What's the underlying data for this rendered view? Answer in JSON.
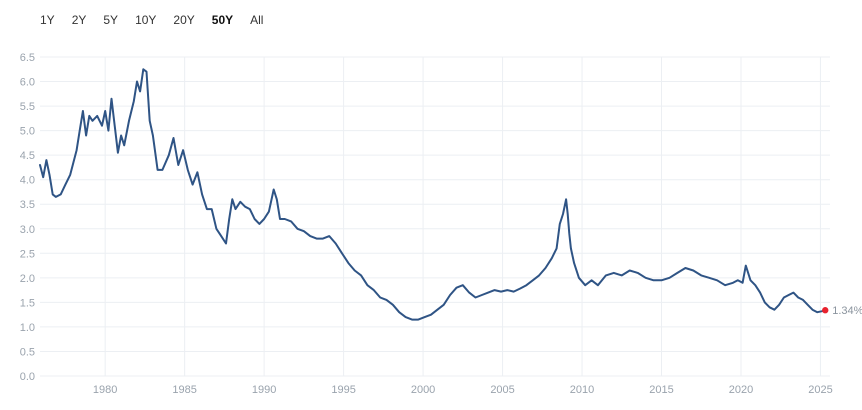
{
  "range_selector": {
    "options": [
      "1Y",
      "2Y",
      "5Y",
      "10Y",
      "20Y",
      "50Y",
      "All"
    ],
    "selected": "50Y"
  },
  "colors": {
    "line": "#2f5485",
    "grid": "#eceff3",
    "marker": "#e8222e",
    "tick": "#9aa3ad"
  },
  "chart_data": {
    "type": "line",
    "title": "",
    "xlabel": "",
    "ylabel": "",
    "xlim": [
      1975.9,
      2025.6
    ],
    "ylim": [
      0.0,
      6.5
    ],
    "y_ticks": [
      0.0,
      0.5,
      1.0,
      1.5,
      2.0,
      2.5,
      3.0,
      3.5,
      4.0,
      4.5,
      5.0,
      5.5,
      6.0,
      6.5
    ],
    "x_ticks": [
      1980,
      1985,
      1990,
      1995,
      2000,
      2005,
      2010,
      2015,
      2020,
      2025
    ],
    "grid": true,
    "last_value_label": "1.34%",
    "series": [
      {
        "x": [
          1975.9,
          1976.1,
          1976.3,
          1976.5,
          1976.7,
          1976.9,
          1977.2,
          1977.5,
          1977.8,
          1978.0,
          1978.2,
          1978.4,
          1978.6,
          1978.8,
          1979.0,
          1979.2,
          1979.5,
          1979.8,
          1980.0,
          1980.2,
          1980.4,
          1980.6,
          1980.8,
          1981.0,
          1981.2,
          1981.5,
          1981.8,
          1982.0,
          1982.2,
          1982.4,
          1982.6,
          1982.8,
          1983.0,
          1983.3,
          1983.6,
          1984.0,
          1984.3,
          1984.6,
          1984.9,
          1985.2,
          1985.5,
          1985.8,
          1986.1,
          1986.4,
          1986.7,
          1987.0,
          1987.3,
          1987.6,
          1987.8,
          1988.0,
          1988.2,
          1988.5,
          1988.8,
          1989.1,
          1989.4,
          1989.7,
          1990.0,
          1990.3,
          1990.6,
          1990.8,
          1991.0,
          1991.3,
          1991.7,
          1992.1,
          1992.5,
          1992.9,
          1993.3,
          1993.7,
          1994.1,
          1994.5,
          1994.9,
          1995.3,
          1995.7,
          1996.1,
          1996.5,
          1996.9,
          1997.3,
          1997.7,
          1998.1,
          1998.5,
          1998.9,
          1999.3,
          1999.7,
          2000.1,
          2000.5,
          2000.9,
          2001.3,
          2001.7,
          2002.1,
          2002.5,
          2002.9,
          2003.3,
          2003.7,
          2004.1,
          2004.5,
          2004.9,
          2005.3,
          2005.7,
          2006.1,
          2006.5,
          2006.9,
          2007.3,
          2007.7,
          2008.1,
          2008.4,
          2008.6,
          2008.8,
          2009.0,
          2009.1,
          2009.2,
          2009.3,
          2009.5,
          2009.8,
          2010.2,
          2010.6,
          2011.0,
          2011.5,
          2012.0,
          2012.5,
          2013.0,
          2013.5,
          2014.0,
          2014.5,
          2015.0,
          2015.5,
          2016.0,
          2016.5,
          2017.0,
          2017.5,
          2018.0,
          2018.5,
          2019.0,
          2019.5,
          2019.8,
          2020.1,
          2020.3,
          2020.6,
          2020.9,
          2021.2,
          2021.5,
          2021.8,
          2022.1,
          2022.4,
          2022.7,
          2023.0,
          2023.3,
          2023.6,
          2023.9,
          2024.2,
          2024.5,
          2024.8,
          2025.1,
          2025.3
        ],
        "y": [
          4.3,
          4.05,
          4.4,
          4.1,
          3.7,
          3.65,
          3.7,
          3.9,
          4.1,
          4.35,
          4.6,
          5.0,
          5.4,
          4.9,
          5.3,
          5.2,
          5.3,
          5.1,
          5.4,
          5.0,
          5.65,
          5.1,
          4.55,
          4.9,
          4.7,
          5.2,
          5.6,
          6.0,
          5.8,
          6.25,
          6.2,
          5.2,
          4.9,
          4.2,
          4.2,
          4.5,
          4.85,
          4.3,
          4.6,
          4.2,
          3.9,
          4.15,
          3.7,
          3.4,
          3.4,
          3.0,
          2.85,
          2.7,
          3.2,
          3.6,
          3.4,
          3.55,
          3.45,
          3.4,
          3.2,
          3.1,
          3.2,
          3.35,
          3.8,
          3.6,
          3.2,
          3.2,
          3.15,
          3.0,
          2.95,
          2.85,
          2.8,
          2.8,
          2.85,
          2.7,
          2.5,
          2.3,
          2.15,
          2.05,
          1.85,
          1.75,
          1.6,
          1.55,
          1.45,
          1.3,
          1.2,
          1.15,
          1.15,
          1.2,
          1.25,
          1.35,
          1.45,
          1.65,
          1.8,
          1.85,
          1.7,
          1.6,
          1.65,
          1.7,
          1.75,
          1.72,
          1.75,
          1.72,
          1.78,
          1.85,
          1.95,
          2.05,
          2.2,
          2.4,
          2.6,
          3.1,
          3.3,
          3.6,
          3.3,
          2.9,
          2.6,
          2.3,
          2.0,
          1.85,
          1.95,
          1.85,
          2.05,
          2.1,
          2.05,
          2.15,
          2.1,
          2.0,
          1.95,
          1.95,
          2.0,
          2.1,
          2.2,
          2.15,
          2.05,
          2.0,
          1.95,
          1.85,
          1.9,
          1.95,
          1.9,
          2.25,
          1.95,
          1.85,
          1.7,
          1.5,
          1.4,
          1.35,
          1.45,
          1.6,
          1.65,
          1.7,
          1.6,
          1.55,
          1.45,
          1.35,
          1.3,
          1.32,
          1.34
        ]
      }
    ]
  }
}
